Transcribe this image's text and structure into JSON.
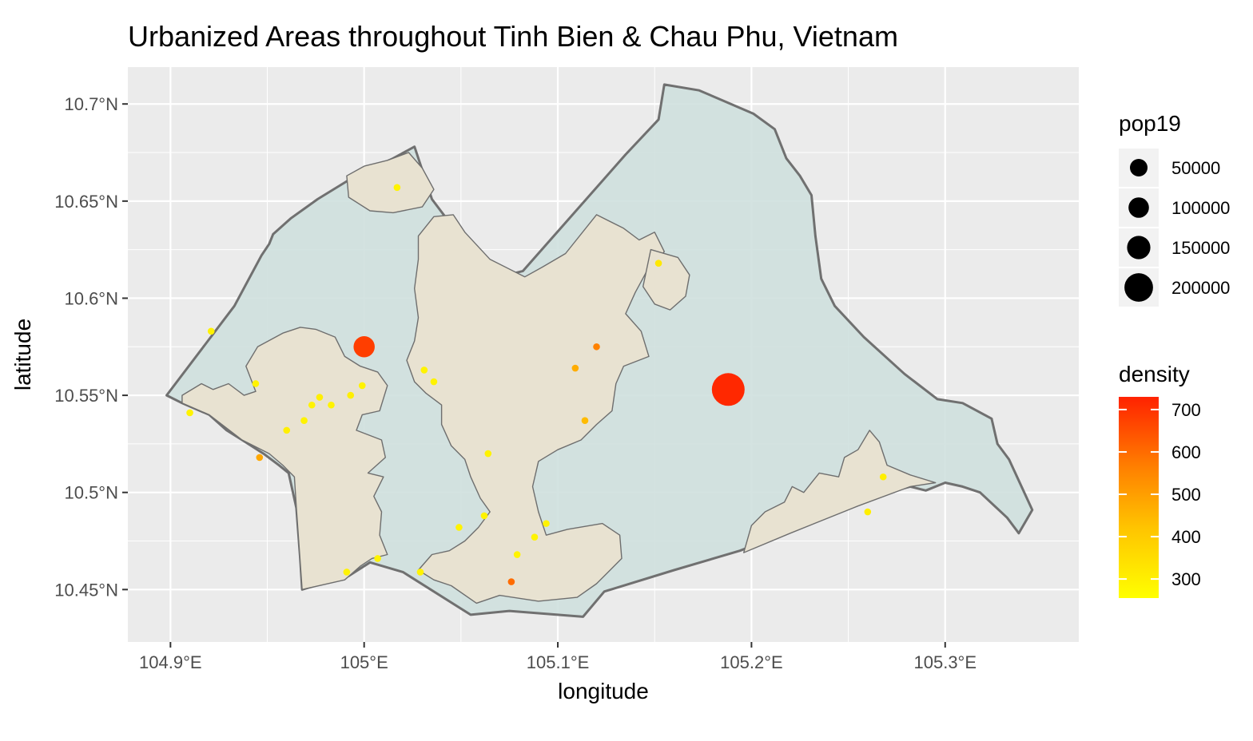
{
  "chart_data": {
    "type": "map",
    "title": "Urbanized Areas throughout Tinh Bien & Chau Phu, Vietnam",
    "xlabel": "longitude",
    "ylabel": "latitude",
    "xlim": [
      104.878,
      105.369
    ],
    "ylim": [
      10.423,
      10.719
    ],
    "x_ticks": [
      {
        "value": 104.9,
        "label": "104.9°E"
      },
      {
        "value": 105.0,
        "label": "105°E"
      },
      {
        "value": 105.1,
        "label": "105.1°E"
      },
      {
        "value": 105.2,
        "label": "105.2°E"
      },
      {
        "value": 105.3,
        "label": "105.3°E"
      }
    ],
    "y_ticks": [
      {
        "value": 10.45,
        "label": "10.45°N"
      },
      {
        "value": 10.5,
        "label": "10.5°N"
      },
      {
        "value": 10.55,
        "label": "10.55°N"
      },
      {
        "value": 10.6,
        "label": "10.6°N"
      },
      {
        "value": 10.65,
        "label": "10.65°N"
      },
      {
        "value": 10.7,
        "label": "10.7°N"
      }
    ],
    "grid": true,
    "colors": {
      "panel": "#ebebeb",
      "grid": "#ffffff",
      "region_fill": "#cfe0de",
      "region_stroke": "#707070",
      "urban_fill": "#e8e2d1",
      "urban_stroke": "#6e6e6e"
    },
    "boundary": [
      [
        104.898,
        10.55
      ],
      [
        104.933,
        10.596
      ],
      [
        104.947,
        10.622
      ],
      [
        104.951,
        10.628
      ],
      [
        104.953,
        10.633
      ],
      [
        104.962,
        10.641
      ],
      [
        104.976,
        10.651
      ],
      [
        104.994,
        10.662
      ],
      [
        105.015,
        10.672
      ],
      [
        105.026,
        10.678
      ],
      [
        105.035,
        10.651
      ],
      [
        105.066,
        10.61
      ],
      [
        105.082,
        10.614
      ],
      [
        105.135,
        10.674
      ],
      [
        105.152,
        10.692
      ],
      [
        105.155,
        10.71
      ],
      [
        105.173,
        10.707
      ],
      [
        105.194,
        10.698
      ],
      [
        105.201,
        10.695
      ],
      [
        105.212,
        10.687
      ],
      [
        105.218,
        10.672
      ],
      [
        105.225,
        10.663
      ],
      [
        105.231,
        10.653
      ],
      [
        105.233,
        10.632
      ],
      [
        105.236,
        10.61
      ],
      [
        105.243,
        10.596
      ],
      [
        105.258,
        10.58
      ],
      [
        105.279,
        10.561
      ],
      [
        105.296,
        10.548
      ],
      [
        105.309,
        10.546
      ],
      [
        105.324,
        10.538
      ],
      [
        105.327,
        10.525
      ],
      [
        105.333,
        10.517
      ],
      [
        105.345,
        10.491
      ],
      [
        105.338,
        10.479
      ],
      [
        105.332,
        10.487
      ],
      [
        105.318,
        10.5
      ],
      [
        105.309,
        10.503
      ],
      [
        105.3,
        10.505
      ],
      [
        105.29,
        10.501
      ],
      [
        105.282,
        10.503
      ],
      [
        105.274,
        10.501
      ],
      [
        105.255,
        10.494
      ],
      [
        105.22,
        10.48
      ],
      [
        105.194,
        10.47
      ],
      [
        105.16,
        10.46
      ],
      [
        105.124,
        10.449
      ],
      [
        105.113,
        10.436
      ],
      [
        105.075,
        10.439
      ],
      [
        105.055,
        10.437
      ],
      [
        105.02,
        10.459
      ],
      [
        105.003,
        10.464
      ],
      [
        104.992,
        10.457
      ],
      [
        104.968,
        10.45
      ],
      [
        104.967,
        10.466
      ],
      [
        104.965,
        10.492
      ],
      [
        104.961,
        10.51
      ],
      [
        104.956,
        10.514
      ],
      [
        104.948,
        10.52
      ],
      [
        104.937,
        10.527
      ],
      [
        104.929,
        10.532
      ],
      [
        104.92,
        10.54
      ],
      [
        104.906,
        10.546
      ],
      [
        104.898,
        10.55
      ]
    ],
    "urban_areas": [
      [
        [
          104.906,
          10.546
        ],
        [
          104.92,
          10.54
        ],
        [
          104.937,
          10.527
        ],
        [
          104.951,
          10.52
        ],
        [
          104.958,
          10.514
        ],
        [
          104.964,
          10.508
        ],
        [
          104.965,
          10.492
        ],
        [
          104.968,
          10.45
        ],
        [
          104.99,
          10.455
        ],
        [
          104.998,
          10.462
        ],
        [
          105.004,
          10.466
        ],
        [
          105.012,
          10.468
        ],
        [
          105.008,
          10.478
        ],
        [
          105.009,
          10.49
        ],
        [
          105.005,
          10.498
        ],
        [
          105.01,
          10.508
        ],
        [
          105.002,
          10.51
        ],
        [
          105.011,
          10.518
        ],
        [
          105.009,
          10.527
        ],
        [
          104.996,
          10.532
        ],
        [
          104.999,
          10.54
        ],
        [
          105.008,
          10.542
        ],
        [
          105.012,
          10.555
        ],
        [
          105.007,
          10.562
        ],
        [
          104.998,
          10.565
        ],
        [
          104.99,
          10.57
        ],
        [
          104.985,
          10.58
        ],
        [
          104.975,
          10.584
        ],
        [
          104.967,
          10.585
        ],
        [
          104.958,
          10.582
        ],
        [
          104.945,
          10.575
        ],
        [
          104.939,
          10.565
        ],
        [
          104.944,
          10.552
        ],
        [
          104.938,
          10.55
        ],
        [
          104.93,
          10.556
        ],
        [
          104.922,
          10.553
        ],
        [
          104.916,
          10.556
        ],
        [
          104.906,
          10.55
        ],
        [
          104.906,
          10.546
        ]
      ],
      [
        [
          105.023,
          10.675
        ],
        [
          105.03,
          10.667
        ],
        [
          105.036,
          10.656
        ],
        [
          105.03,
          10.647
        ],
        [
          105.015,
          10.644
        ],
        [
          105.003,
          10.645
        ],
        [
          104.992,
          10.652
        ],
        [
          104.991,
          10.663
        ],
        [
          105.0,
          10.668
        ],
        [
          105.012,
          10.671
        ],
        [
          105.023,
          10.675
        ]
      ],
      [
        [
          105.028,
          10.632
        ],
        [
          105.036,
          10.642
        ],
        [
          105.046,
          10.643
        ],
        [
          105.052,
          10.634
        ],
        [
          105.065,
          10.62
        ],
        [
          105.083,
          10.611
        ],
        [
          105.092,
          10.616
        ],
        [
          105.104,
          10.623
        ],
        [
          105.12,
          10.643
        ],
        [
          105.134,
          10.636
        ],
        [
          105.142,
          10.63
        ],
        [
          105.15,
          10.634
        ],
        [
          105.155,
          10.624
        ],
        [
          105.146,
          10.614
        ],
        [
          105.14,
          10.603
        ],
        [
          105.135,
          10.592
        ],
        [
          105.143,
          10.583
        ],
        [
          105.147,
          10.57
        ],
        [
          105.134,
          10.565
        ],
        [
          105.13,
          10.556
        ],
        [
          105.128,
          10.542
        ],
        [
          105.12,
          10.535
        ],
        [
          105.112,
          10.527
        ],
        [
          105.1,
          10.522
        ],
        [
          105.09,
          10.516
        ],
        [
          105.087,
          10.503
        ],
        [
          105.09,
          10.49
        ],
        [
          105.094,
          10.478
        ],
        [
          105.105,
          10.481
        ],
        [
          105.123,
          10.484
        ],
        [
          105.132,
          10.478
        ],
        [
          105.133,
          10.466
        ],
        [
          105.12,
          10.453
        ],
        [
          105.11,
          10.446
        ],
        [
          105.09,
          10.444
        ],
        [
          105.07,
          10.447
        ],
        [
          105.058,
          10.443
        ],
        [
          105.045,
          10.452
        ],
        [
          105.036,
          10.455
        ],
        [
          105.028,
          10.46
        ],
        [
          105.035,
          10.468
        ],
        [
          105.044,
          10.47
        ],
        [
          105.052,
          10.475
        ],
        [
          105.059,
          10.482
        ],
        [
          105.065,
          10.49
        ],
        [
          105.06,
          10.497
        ],
        [
          105.055,
          10.508
        ],
        [
          105.052,
          10.517
        ],
        [
          105.045,
          10.524
        ],
        [
          105.04,
          10.535
        ],
        [
          105.04,
          10.545
        ],
        [
          105.032,
          10.551
        ],
        [
          105.026,
          10.557
        ],
        [
          105.022,
          10.568
        ],
        [
          105.026,
          10.578
        ],
        [
          105.028,
          10.59
        ],
        [
          105.026,
          10.605
        ],
        [
          105.028,
          10.62
        ],
        [
          105.028,
          10.632
        ]
      ],
      [
        [
          105.148,
          10.625
        ],
        [
          105.162,
          10.621
        ],
        [
          105.168,
          10.612
        ],
        [
          105.166,
          10.601
        ],
        [
          105.158,
          10.594
        ],
        [
          105.15,
          10.597
        ],
        [
          105.144,
          10.606
        ],
        [
          105.148,
          10.625
        ]
      ],
      [
        [
          105.196,
          10.469
        ],
        [
          105.22,
          10.479
        ],
        [
          105.255,
          10.493
        ],
        [
          105.282,
          10.503
        ],
        [
          105.295,
          10.505
        ],
        [
          105.282,
          10.509
        ],
        [
          105.27,
          10.514
        ],
        [
          105.266,
          10.526
        ],
        [
          105.261,
          10.532
        ],
        [
          105.255,
          10.522
        ],
        [
          105.248,
          10.518
        ],
        [
          105.245,
          10.508
        ],
        [
          105.235,
          10.51
        ],
        [
          105.227,
          10.5
        ],
        [
          105.221,
          10.503
        ],
        [
          105.217,
          10.495
        ],
        [
          105.207,
          10.49
        ],
        [
          105.2,
          10.483
        ],
        [
          105.196,
          10.469
        ]
      ]
    ],
    "points": [
      {
        "lon": 105.0,
        "lat": 10.575,
        "pop19": 90000,
        "density": 680
      },
      {
        "lon": 105.188,
        "lat": 10.553,
        "pop19": 215000,
        "density": 720
      },
      {
        "lon": 105.12,
        "lat": 10.575,
        "pop19": 8000,
        "density": 560
      },
      {
        "lon": 105.109,
        "lat": 10.564,
        "pop19": 8000,
        "density": 470
      },
      {
        "lon": 105.114,
        "lat": 10.537,
        "pop19": 8000,
        "density": 440
      },
      {
        "lon": 105.076,
        "lat": 10.454,
        "pop19": 8000,
        "density": 600
      },
      {
        "lon": 104.946,
        "lat": 10.518,
        "pop19": 8000,
        "density": 480
      },
      {
        "lon": 105.152,
        "lat": 10.618,
        "pop19": 6000,
        "density": 320
      },
      {
        "lon": 105.017,
        "lat": 10.657,
        "pop19": 6000,
        "density": 290
      },
      {
        "lon": 104.921,
        "lat": 10.583,
        "pop19": 6000,
        "density": 290
      },
      {
        "lon": 104.91,
        "lat": 10.541,
        "pop19": 6000,
        "density": 290
      },
      {
        "lon": 104.944,
        "lat": 10.556,
        "pop19": 6000,
        "density": 290
      },
      {
        "lon": 104.96,
        "lat": 10.532,
        "pop19": 9000,
        "density": 300
      },
      {
        "lon": 104.969,
        "lat": 10.537,
        "pop19": 6000,
        "density": 290
      },
      {
        "lon": 104.973,
        "lat": 10.545,
        "pop19": 6000,
        "density": 290
      },
      {
        "lon": 104.977,
        "lat": 10.549,
        "pop19": 6000,
        "density": 300
      },
      {
        "lon": 104.983,
        "lat": 10.545,
        "pop19": 6000,
        "density": 290
      },
      {
        "lon": 104.993,
        "lat": 10.55,
        "pop19": 6000,
        "density": 300
      },
      {
        "lon": 104.999,
        "lat": 10.555,
        "pop19": 6000,
        "density": 290
      },
      {
        "lon": 105.031,
        "lat": 10.563,
        "pop19": 6000,
        "density": 290
      },
      {
        "lon": 105.036,
        "lat": 10.557,
        "pop19": 6000,
        "density": 290
      },
      {
        "lon": 105.064,
        "lat": 10.52,
        "pop19": 6000,
        "density": 290
      },
      {
        "lon": 105.062,
        "lat": 10.488,
        "pop19": 6000,
        "density": 290
      },
      {
        "lon": 105.049,
        "lat": 10.482,
        "pop19": 6000,
        "density": 290
      },
      {
        "lon": 105.094,
        "lat": 10.484,
        "pop19": 6000,
        "density": 290
      },
      {
        "lon": 105.088,
        "lat": 10.477,
        "pop19": 6000,
        "density": 290
      },
      {
        "lon": 105.079,
        "lat": 10.468,
        "pop19": 6000,
        "density": 290
      },
      {
        "lon": 105.029,
        "lat": 10.459,
        "pop19": 6000,
        "density": 290
      },
      {
        "lon": 104.991,
        "lat": 10.459,
        "pop19": 6000,
        "density": 290
      },
      {
        "lon": 105.007,
        "lat": 10.466,
        "pop19": 6000,
        "density": 290
      },
      {
        "lon": 105.268,
        "lat": 10.508,
        "pop19": 6000,
        "density": 300
      },
      {
        "lon": 105.26,
        "lat": 10.49,
        "pop19": 6000,
        "density": 300
      }
    ],
    "legend_size": {
      "title": "pop19",
      "entries": [
        {
          "value": 50000,
          "label": "50000"
        },
        {
          "value": 100000,
          "label": "100000"
        },
        {
          "value": 150000,
          "label": "150000"
        },
        {
          "value": 200000,
          "label": "200000"
        }
      ]
    },
    "legend_color": {
      "title": "density",
      "min": 255,
      "max": 730,
      "low_color": "#ffff00",
      "high_color": "#ff2200",
      "ticks": [
        {
          "value": 700,
          "label": "700"
        },
        {
          "value": 600,
          "label": "600"
        },
        {
          "value": 500,
          "label": "500"
        },
        {
          "value": 400,
          "label": "400"
        },
        {
          "value": 300,
          "label": "300"
        }
      ]
    }
  }
}
